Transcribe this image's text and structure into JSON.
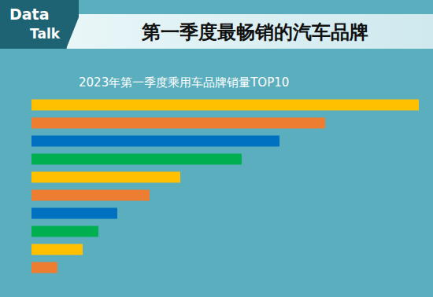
{
  "chart_data": {
    "type": "bar",
    "orientation": "horizontal",
    "title": "第一季度最畅销的汽车品牌",
    "subtitle": "2023年第一季度乘用车品牌销量TOP10",
    "annotations": [
      "Data",
      "Talk"
    ],
    "categories": [
      null,
      null,
      null,
      null,
      null,
      null,
      null,
      null,
      null,
      null
    ],
    "values": [
      492,
      373,
      315,
      267,
      189,
      150,
      109,
      85,
      65,
      33
    ],
    "colors": [
      "#ffc000",
      "#ed7d31",
      "#0070c0",
      "#00b050",
      "#ffc000",
      "#ed7d31",
      "#0070c0",
      "#00b050",
      "#ffc000",
      "#ed7d31"
    ],
    "xlim": [
      0,
      492
    ],
    "tick_labels": false,
    "grid": false
  }
}
